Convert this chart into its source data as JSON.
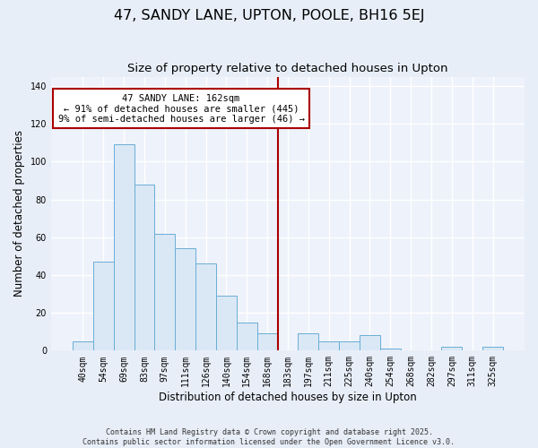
{
  "title": "47, SANDY LANE, UPTON, POOLE, BH16 5EJ",
  "subtitle": "Size of property relative to detached houses in Upton",
  "xlabel": "Distribution of detached houses by size in Upton",
  "ylabel": "Number of detached properties",
  "bar_labels": [
    "40sqm",
    "54sqm",
    "69sqm",
    "83sqm",
    "97sqm",
    "111sqm",
    "126sqm",
    "140sqm",
    "154sqm",
    "168sqm",
    "183sqm",
    "197sqm",
    "211sqm",
    "225sqm",
    "240sqm",
    "254sqm",
    "268sqm",
    "282sqm",
    "297sqm",
    "311sqm",
    "325sqm"
  ],
  "bar_values": [
    5,
    47,
    109,
    88,
    62,
    54,
    46,
    29,
    15,
    9,
    0,
    9,
    5,
    5,
    8,
    1,
    0,
    0,
    2,
    0,
    2
  ],
  "bar_color": "#dae8f5",
  "bar_edge_color": "#6aaed6",
  "vline_x": 9.5,
  "vline_color": "#aa0000",
  "ylim": [
    0,
    145
  ],
  "yticks": [
    0,
    20,
    40,
    60,
    80,
    100,
    120,
    140
  ],
  "annotation_text": "47 SANDY LANE: 162sqm\n← 91% of detached houses are smaller (445)\n9% of semi-detached houses are larger (46) →",
  "annotation_box_color": "#ffffff",
  "annotation_box_edge": "#aa0000",
  "footer1": "Contains HM Land Registry data © Crown copyright and database right 2025.",
  "footer2": "Contains public sector information licensed under the Open Government Licence v3.0.",
  "bg_color": "#e8eef8",
  "plot_bg_color": "#eef2fa",
  "grid_color": "#ffffff",
  "title_fontsize": 11.5,
  "subtitle_fontsize": 9.5,
  "axis_label_fontsize": 8.5,
  "tick_fontsize": 7,
  "annot_fontsize": 7.5,
  "footer_fontsize": 6.0
}
